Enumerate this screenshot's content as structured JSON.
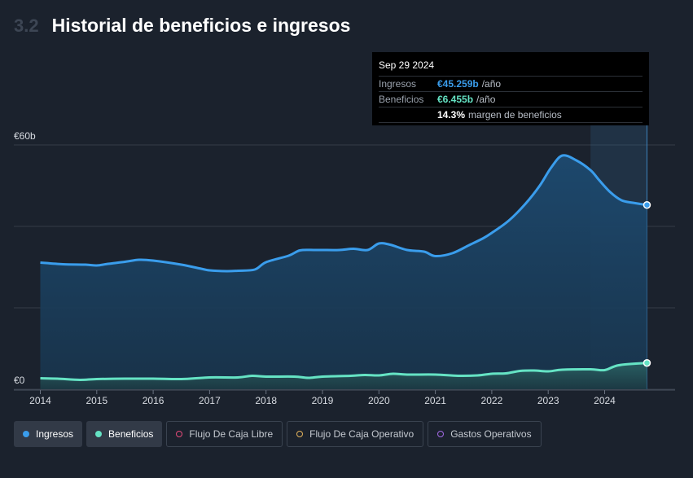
{
  "header": {
    "section_number": "3.2",
    "title": "Historial de beneficios e ingresos"
  },
  "tooltip": {
    "date": "Sep 29 2024",
    "revenue_label": "Ingresos",
    "revenue_value": "€45.259b",
    "revenue_unit": "/año",
    "earnings_label": "Beneficios",
    "earnings_value": "€6.455b",
    "earnings_unit": "/año",
    "margin_value": "14.3%",
    "margin_text": "margen de beneficios"
  },
  "legend": {
    "revenue": "Ingresos",
    "earnings": "Beneficios",
    "fcf": "Flujo De Caja Libre",
    "ocf": "Flujo De Caja Operativo",
    "opex": "Gastos Operativos"
  },
  "colors": {
    "revenue": "#3a9dec",
    "earnings": "#65e3c4",
    "fcf": "#e64a7a",
    "ocf": "#e4b35c",
    "opex": "#a36ae6"
  },
  "chart_data": {
    "type": "area",
    "ylim": [
      0,
      60
    ],
    "y_ticks": [
      {
        "value": 60,
        "label": "€60b"
      },
      {
        "value": 0,
        "label": "€0"
      }
    ],
    "x_ticks": [
      2014,
      2015,
      2016,
      2017,
      2018,
      2019,
      2020,
      2021,
      2022,
      2023,
      2024
    ],
    "x_tick_labels": [
      "2014",
      "2015",
      "2016",
      "2017",
      "2018",
      "2019",
      "2020",
      "2021",
      "2022",
      "2023",
      "2024"
    ],
    "grid": true,
    "highlight_from": 2023.75,
    "series": [
      {
        "name": "Ingresos",
        "points": [
          [
            2014.0,
            31.1
          ],
          [
            2014.4,
            30.7
          ],
          [
            2014.8,
            30.6
          ],
          [
            2015.0,
            30.4
          ],
          [
            2015.2,
            30.8
          ],
          [
            2015.5,
            31.3
          ],
          [
            2015.75,
            31.8
          ],
          [
            2016.0,
            31.6
          ],
          [
            2016.5,
            30.6
          ],
          [
            2016.85,
            29.6
          ],
          [
            2017.0,
            29.2
          ],
          [
            2017.3,
            29.0
          ],
          [
            2017.5,
            29.1
          ],
          [
            2017.8,
            29.4
          ],
          [
            2018.0,
            31.2
          ],
          [
            2018.4,
            32.8
          ],
          [
            2018.6,
            34.1
          ],
          [
            2018.85,
            34.2
          ],
          [
            2019.0,
            34.2
          ],
          [
            2019.3,
            34.2
          ],
          [
            2019.55,
            34.5
          ],
          [
            2019.8,
            34.2
          ],
          [
            2020.0,
            35.8
          ],
          [
            2020.2,
            35.5
          ],
          [
            2020.5,
            34.2
          ],
          [
            2020.8,
            33.8
          ],
          [
            2021.0,
            32.7
          ],
          [
            2021.3,
            33.4
          ],
          [
            2021.6,
            35.4
          ],
          [
            2021.85,
            37.1
          ],
          [
            2022.0,
            38.4
          ],
          [
            2022.3,
            41.4
          ],
          [
            2022.6,
            45.6
          ],
          [
            2022.85,
            50.0
          ],
          [
            2023.05,
            54.4
          ],
          [
            2023.25,
            57.4
          ],
          [
            2023.5,
            56.2
          ],
          [
            2023.75,
            53.8
          ],
          [
            2023.9,
            51.4
          ],
          [
            2024.1,
            48.4
          ],
          [
            2024.3,
            46.4
          ],
          [
            2024.5,
            45.8
          ],
          [
            2024.75,
            45.259
          ]
        ]
      },
      {
        "name": "Beneficios",
        "points": [
          [
            2014.0,
            2.7
          ],
          [
            2014.3,
            2.6
          ],
          [
            2014.7,
            2.3
          ],
          [
            2015.0,
            2.5
          ],
          [
            2015.5,
            2.6
          ],
          [
            2016.0,
            2.6
          ],
          [
            2016.5,
            2.5
          ],
          [
            2017.0,
            2.9
          ],
          [
            2017.5,
            2.9
          ],
          [
            2017.75,
            3.3
          ],
          [
            2018.0,
            3.1
          ],
          [
            2018.5,
            3.1
          ],
          [
            2018.75,
            2.8
          ],
          [
            2019.0,
            3.1
          ],
          [
            2019.5,
            3.3
          ],
          [
            2019.75,
            3.5
          ],
          [
            2020.0,
            3.4
          ],
          [
            2020.25,
            3.8
          ],
          [
            2020.5,
            3.6
          ],
          [
            2021.0,
            3.6
          ],
          [
            2021.4,
            3.3
          ],
          [
            2021.75,
            3.4
          ],
          [
            2022.0,
            3.8
          ],
          [
            2022.25,
            3.9
          ],
          [
            2022.5,
            4.5
          ],
          [
            2022.75,
            4.6
          ],
          [
            2023.0,
            4.4
          ],
          [
            2023.25,
            4.8
          ],
          [
            2023.75,
            4.9
          ],
          [
            2024.0,
            4.7
          ],
          [
            2024.25,
            5.9
          ],
          [
            2024.75,
            6.455
          ]
        ]
      }
    ]
  }
}
